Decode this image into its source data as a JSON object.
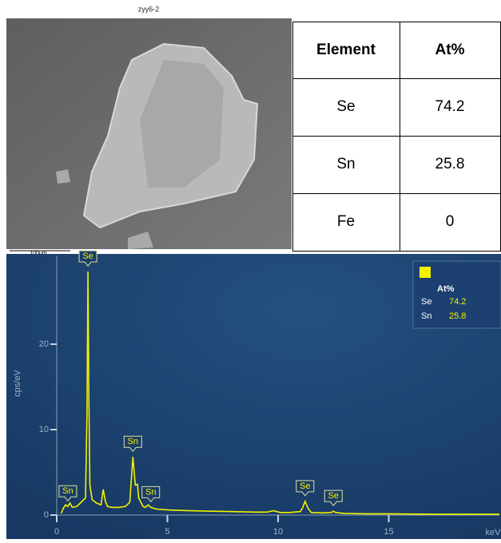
{
  "image": {
    "title": "zyy6-2",
    "scale_bar": "100μm"
  },
  "table": {
    "header": [
      "Element",
      "At%"
    ],
    "rows": [
      [
        "Se",
        74.2
      ],
      [
        "Sn",
        25.8
      ],
      [
        "Fe",
        0
      ]
    ]
  },
  "chart_data": {
    "type": "line",
    "xlabel": "keV",
    "ylabel": "cps/eV",
    "xlim": [
      0,
      20
    ],
    "ylim": [
      0,
      30
    ],
    "xticks": [
      0,
      5,
      10,
      15
    ],
    "yticks": [
      0,
      10,
      20
    ],
    "x": [
      0.2,
      0.3,
      0.4,
      0.5,
      0.6,
      0.7,
      0.9,
      1.1,
      1.3,
      1.37,
      1.41,
      1.45,
      1.5,
      1.6,
      1.8,
      2.0,
      2.1,
      2.2,
      2.3,
      2.5,
      2.8,
      3.1,
      3.3,
      3.44,
      3.55,
      3.65,
      3.7,
      3.8,
      3.9,
      4.0,
      4.13,
      4.25,
      4.5,
      5,
      6,
      7,
      8,
      9,
      9.5,
      9.8,
      10.1,
      10.5,
      11.0,
      11.1,
      11.22,
      11.35,
      11.5,
      12,
      12.4,
      12.5,
      12.6,
      13,
      14,
      15,
      16,
      17,
      18,
      19,
      20
    ],
    "series": [
      {
        "name": "Se",
        "color": "#f2f200",
        "values": [
          0.2,
          0.8,
          1.2,
          1.0,
          1.4,
          0.9,
          1.0,
          1.5,
          2.0,
          12,
          28.5,
          14,
          3.5,
          1.8,
          1.4,
          1.2,
          3.0,
          1.6,
          1.0,
          0.9,
          0.9,
          1.0,
          1.5,
          6.8,
          3.5,
          3.6,
          2.0,
          1.5,
          1.0,
          0.9,
          1.2,
          0.9,
          0.7,
          0.6,
          0.5,
          0.45,
          0.4,
          0.35,
          0.35,
          0.5,
          0.3,
          0.3,
          0.4,
          0.8,
          1.6,
          0.8,
          0.3,
          0.25,
          0.3,
          0.45,
          0.3,
          0.2,
          0.15,
          0.15,
          0.12,
          0.1,
          0.1,
          0.1,
          0.1
        ]
      }
    ],
    "peaks": [
      {
        "label": "Sn",
        "x": 0.5
      },
      {
        "label": "Se",
        "x": 1.41
      },
      {
        "label": "Sn",
        "x": 3.44
      },
      {
        "label": "Sn",
        "x": 4.25
      },
      {
        "label": "Se",
        "x": 11.22
      },
      {
        "label": "Se",
        "x": 12.5
      }
    ],
    "legend": {
      "title": "At%",
      "rows": [
        {
          "name": "Se",
          "value": 74.2
        },
        {
          "name": "Sn",
          "value": 25.8
        }
      ]
    }
  }
}
